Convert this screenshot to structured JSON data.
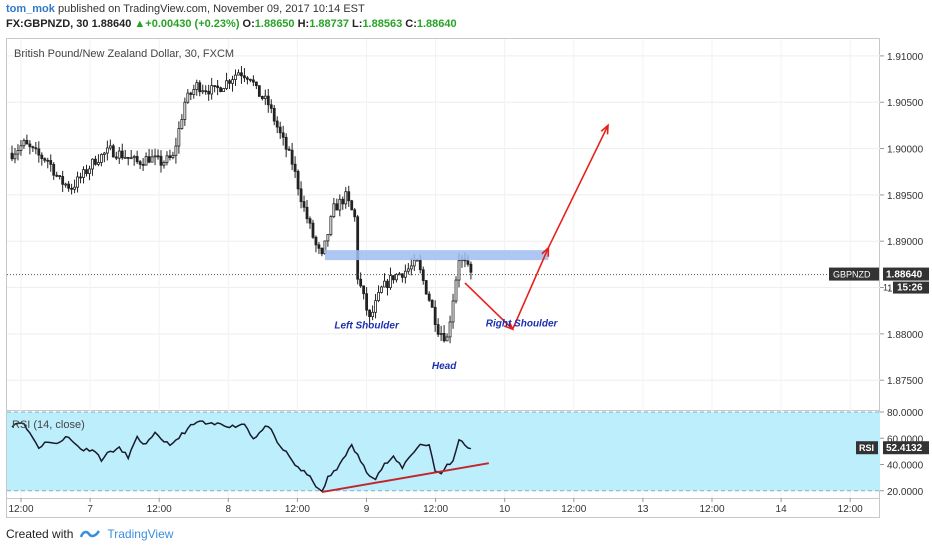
{
  "header": {
    "user": "tom_mok",
    "published": "published on TradingView.com, November 09, 2017 10:14 EST",
    "symbol": "FX:GBPNZD, 30",
    "last": "1.88640",
    "change": "+0.00430 (+0.23%)",
    "o_label": "O:",
    "o_value": "1.88650",
    "h_label": "H:",
    "h_value": "1.88737",
    "l_label": "L:",
    "l_value": "1.88563",
    "c_label": "C:",
    "c_value": "1.88640"
  },
  "footer": {
    "created_with": "Created with",
    "brand": "TradingView"
  },
  "colors": {
    "up": "#27a327",
    "candle": "#222222",
    "neckline": "#9fbdf0",
    "arrow": "#e8201a",
    "rsi_bg": "#bdeefc",
    "rsi_line": "#1a1a2a",
    "trend": "#c0272d",
    "tag_bg": "#333333"
  },
  "chart_data": [
    {
      "type": "candlestick",
      "title": "British Pound/New Zealand Dollar, 30, FXCM",
      "ylim": [
        1.872,
        1.9115
      ],
      "y_ticks": [
        "1.91000",
        "1.90500",
        "1.90000",
        "1.89500",
        "1.89000",
        "1.88500",
        "1.88000",
        "1.87500"
      ],
      "y_tick_values": [
        1.91,
        1.905,
        1.9,
        1.895,
        1.89,
        1.885,
        1.88,
        1.875
      ],
      "x_ticks": [
        "12:00",
        "7",
        "12:00",
        "8",
        "12:00",
        "9",
        "12:00",
        "10",
        "12:00",
        "13",
        "12:00",
        "14",
        "12:00"
      ],
      "price_tag": {
        "symbol": "GBPNZD",
        "value": "1.88640",
        "countdown": "15:26",
        "partial_axis": "1."
      },
      "close_anchors": [
        [
          0,
          1.8995
        ],
        [
          4,
          1.9005
        ],
        [
          9,
          1.8992
        ],
        [
          12,
          1.8988
        ],
        [
          16,
          1.8965
        ],
        [
          20,
          1.8958
        ],
        [
          24,
          1.8972
        ],
        [
          28,
          1.8988
        ],
        [
          33,
          1.8998
        ],
        [
          38,
          1.8992
        ],
        [
          42,
          1.8985
        ],
        [
          46,
          1.899
        ],
        [
          50,
          1.8985
        ],
        [
          54,
          1.899
        ],
        [
          58,
          1.905
        ],
        [
          62,
          1.9068
        ],
        [
          68,
          1.9062
        ],
        [
          72,
          1.9072
        ],
        [
          76,
          1.9083
        ],
        [
          80,
          1.9078
        ],
        [
          82,
          1.9062
        ],
        [
          86,
          1.9048
        ],
        [
          90,
          1.9015
        ],
        [
          94,
          1.8985
        ],
        [
          98,
          1.8935
        ],
        [
          102,
          1.8895
        ],
        [
          104,
          1.8882
        ],
        [
          108,
          1.8935
        ],
        [
          112,
          1.8948
        ],
        [
          115,
          1.8925
        ],
        [
          116,
          1.8862
        ],
        [
          120,
          1.8815
        ],
        [
          124,
          1.8848
        ],
        [
          128,
          1.8862
        ],
        [
          132,
          1.8868
        ],
        [
          136,
          1.8876
        ],
        [
          140,
          1.8838
        ],
        [
          143,
          1.8805
        ],
        [
          146,
          1.8795
        ],
        [
          150,
          1.8882
        ],
        [
          152,
          1.8875
        ],
        [
          154,
          1.8864
        ]
      ],
      "annotations": {
        "left_shoulder": "Left Shoulder",
        "head": "Head",
        "right_shoulder": "Right Shoulder",
        "neckline_level": 1.8885,
        "projected_path": [
          [
            152,
            1.8855
          ],
          [
            168,
            1.8805
          ],
          [
            180,
            1.8893
          ],
          [
            200,
            1.9025
          ]
        ]
      }
    },
    {
      "type": "line",
      "title": "RSI (14, close)",
      "ylim": [
        16,
        80
      ],
      "y_ticks": [
        "80.0000",
        "60.0000",
        "40.0000",
        "20.0000"
      ],
      "y_tick_values": [
        80,
        60,
        40,
        20
      ],
      "band": [
        20,
        80
      ],
      "last_value": "52.4132",
      "tag_label": "RSI",
      "rsi_anchors": [
        [
          0,
          70
        ],
        [
          3,
          73
        ],
        [
          6,
          64
        ],
        [
          9,
          53
        ],
        [
          12,
          58
        ],
        [
          15,
          55
        ],
        [
          18,
          62
        ],
        [
          21,
          56
        ],
        [
          24,
          51
        ],
        [
          27,
          52
        ],
        [
          30,
          44
        ],
        [
          33,
          50
        ],
        [
          36,
          52
        ],
        [
          39,
          46
        ],
        [
          42,
          60
        ],
        [
          45,
          55
        ],
        [
          48,
          63
        ],
        [
          51,
          58
        ],
        [
          54,
          55
        ],
        [
          57,
          63
        ],
        [
          60,
          69
        ],
        [
          63,
          73
        ],
        [
          66,
          70
        ],
        [
          70,
          71
        ],
        [
          74,
          69
        ],
        [
          78,
          71
        ],
        [
          81,
          60
        ],
        [
          84,
          66
        ],
        [
          86,
          70
        ],
        [
          89,
          56
        ],
        [
          92,
          49
        ],
        [
          95,
          40
        ],
        [
          98,
          34
        ],
        [
          101,
          28
        ],
        [
          103,
          20
        ],
        [
          104,
          19
        ],
        [
          106,
          30
        ],
        [
          109,
          36
        ],
        [
          111,
          45
        ],
        [
          114,
          54
        ],
        [
          116,
          47
        ],
        [
          119,
          34
        ],
        [
          122,
          30
        ],
        [
          125,
          40
        ],
        [
          128,
          45
        ],
        [
          131,
          38
        ],
        [
          134,
          48
        ],
        [
          137,
          55
        ],
        [
          140,
          55
        ],
        [
          142,
          36
        ],
        [
          144,
          32
        ],
        [
          146,
          40
        ],
        [
          148,
          42
        ],
        [
          150,
          60
        ],
        [
          152,
          55
        ],
        [
          154,
          52
        ]
      ],
      "trendline": [
        [
          104,
          19
        ],
        [
          160,
          41
        ]
      ]
    }
  ]
}
